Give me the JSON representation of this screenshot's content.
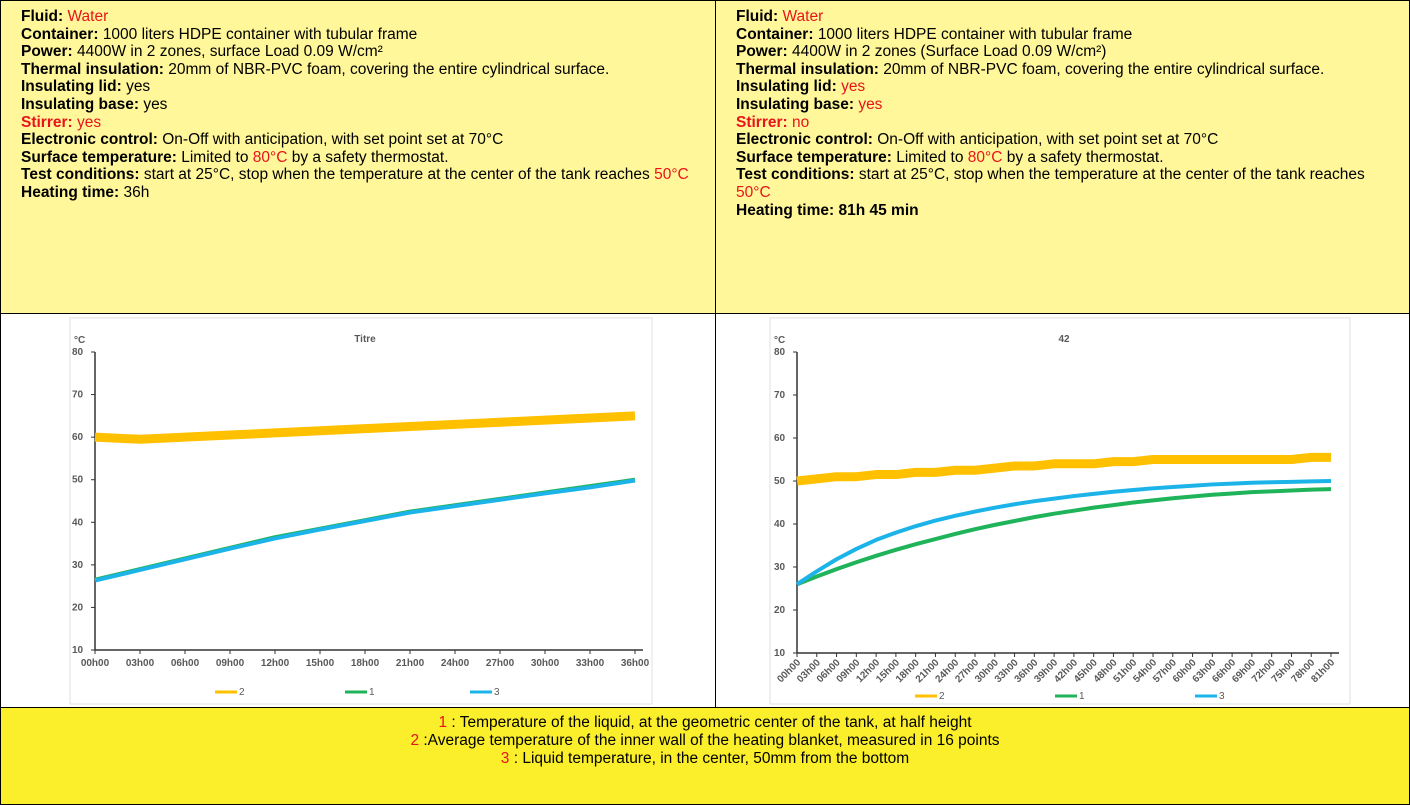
{
  "specs": [
    {
      "items": [
        {
          "label": "Fluid:",
          "value": [
            {
              "text": "Water",
              "red": true
            }
          ]
        },
        {
          "label": "Container:",
          "value": [
            {
              "text": "1000 liters HDPE container with tubular frame"
            }
          ]
        },
        {
          "label": "Power:",
          "value": [
            {
              "text": "4400W in 2 zones, surface Load 0.09 W/cm²"
            }
          ]
        },
        {
          "label": "Thermal insulation:",
          "value": [
            {
              "text": "20mm of NBR-PVC foam, covering the entire cylindrical surface."
            }
          ]
        },
        {
          "label": "Insulating lid:",
          "value": [
            {
              "text": "yes"
            }
          ]
        },
        {
          "label": "Insulating base:",
          "value": [
            {
              "text": "yes"
            }
          ]
        },
        {
          "label": "Stirrer:",
          "label_red": true,
          "value": [
            {
              "text": "yes",
              "red": true
            }
          ]
        },
        {
          "label": "Electronic control:",
          "value": [
            {
              "text": "On-Off with anticipation, with set point set at 70°C"
            }
          ]
        },
        {
          "label": "Surface temperature:",
          "value": [
            {
              "text": "Limited to"
            },
            {
              "text": "80°C",
              "red": true
            },
            {
              "text": "by a safety thermostat."
            }
          ]
        },
        {
          "label": "Test conditions:",
          "value": [
            {
              "text": "start at 25°C, stop when the temperature at the center of the tank reaches"
            },
            {
              "text": "50°C",
              "red": true
            }
          ]
        },
        {
          "label": "Heating time:",
          "value": [
            {
              "text": "36h"
            }
          ]
        }
      ]
    },
    {
      "items": [
        {
          "label": "Fluid:",
          "value": [
            {
              "text": "Water",
              "red": true
            }
          ]
        },
        {
          "label": "Container:",
          "value": [
            {
              "text": "1000 liters HDPE container with tubular frame"
            }
          ]
        },
        {
          "label": "Power:",
          "value": [
            {
              "text": "4400W in 2 zones (Surface Load 0.09 W/cm²)"
            }
          ]
        },
        {
          "label": "Thermal insulation:",
          "value": [
            {
              "text": "20mm of NBR-PVC foam, covering the entire cylindrical surface."
            }
          ]
        },
        {
          "label": "Insulating lid:",
          "value": [
            {
              "text": "yes",
              "red": true
            }
          ]
        },
        {
          "label": "Insulating base:",
          "value": [
            {
              "text": "yes",
              "red": true
            }
          ]
        },
        {
          "label": "Stirrer:",
          "label_red": true,
          "value": [
            {
              "text": "no",
              "red": true
            }
          ]
        },
        {
          "label": "Electronic control:",
          "value": [
            {
              "text": "On-Off with anticipation, with set point set at 70°C"
            }
          ]
        },
        {
          "label": "Surface temperature:",
          "value": [
            {
              "text": "Limited to"
            },
            {
              "text": "80°C",
              "red": true
            },
            {
              "text": "by a safety thermostat."
            }
          ]
        },
        {
          "label": "Test conditions:",
          "value": [
            {
              "text": "start at 25°C, stop when the temperature at the center of the tank reaches"
            },
            {
              "text": "50°C",
              "red": true
            }
          ]
        },
        {
          "label": "Heating time:",
          "value": [
            {
              "text": "81h 45 min",
              "bold": true
            }
          ]
        }
      ]
    }
  ],
  "chart_data": [
    {
      "type": "line",
      "title": "Titre",
      "y_unit": "°C",
      "categories": [
        "00h00",
        "03h00",
        "06h00",
        "09h00",
        "12h00",
        "15h00",
        "18h00",
        "21h00",
        "24h00",
        "27h00",
        "30h00",
        "33h00",
        "36h00"
      ],
      "rotate_x_labels": false,
      "legend": "bottom",
      "ylim": [
        10,
        80
      ],
      "yticks": [
        10,
        20,
        30,
        40,
        50,
        60,
        70,
        80
      ],
      "series": [
        {
          "name": "2",
          "color": "#ffc000",
          "values": [
            60,
            59.5,
            60,
            60.5,
            61,
            61.5,
            62,
            62.5,
            63,
            63.5,
            64,
            64.5,
            65
          ]
        },
        {
          "name": "1",
          "color": "#1fb35a",
          "values": [
            26.5,
            29,
            31.5,
            34,
            36.5,
            38.5,
            40.5,
            42.5,
            44,
            45.5,
            47,
            48.5,
            50
          ]
        },
        {
          "name": "3",
          "color": "#1cb4e8",
          "values": [
            26.3,
            28.8,
            31.3,
            33.8,
            36.2,
            38.3,
            40.3,
            42.3,
            43.8,
            45.3,
            46.8,
            48.2,
            49.8
          ]
        }
      ]
    },
    {
      "type": "line",
      "title": "42",
      "y_unit": "°C",
      "categories": [
        "00h00",
        "03h00",
        "06h00",
        "09h00",
        "12h00",
        "15h00",
        "18h00",
        "21h00",
        "24h00",
        "27h00",
        "30h00",
        "33h00",
        "36h00",
        "39h00",
        "42h00",
        "45h00",
        "48h00",
        "51h00",
        "54h00",
        "57h00",
        "60h00",
        "63h00",
        "66h00",
        "69h00",
        "72h00",
        "75h00",
        "78h00",
        "81h00"
      ],
      "rotate_x_labels": true,
      "legend": "bottom",
      "ylim": [
        10,
        80
      ],
      "yticks": [
        10,
        20,
        30,
        40,
        50,
        60,
        70,
        80
      ],
      "series": [
        {
          "name": "2",
          "color": "#ffc000",
          "values": [
            50,
            50.5,
            51,
            51,
            51.5,
            51.5,
            52,
            52,
            52.5,
            52.5,
            53,
            53.5,
            53.5,
            54,
            54,
            54,
            54.5,
            54.5,
            55,
            55,
            55,
            55,
            55,
            55,
            55,
            55,
            55.5,
            55.5
          ]
        },
        {
          "name": "1",
          "color": "#1fb35a",
          "values": [
            26,
            27.8,
            29.5,
            31.1,
            32.6,
            34,
            35.3,
            36.5,
            37.7,
            38.8,
            39.8,
            40.7,
            41.6,
            42.4,
            43.1,
            43.8,
            44.4,
            45,
            45.5,
            46,
            46.4,
            46.8,
            47.1,
            47.4,
            47.6,
            47.8,
            48,
            48.1
          ]
        },
        {
          "name": "3",
          "color": "#1cb4e8",
          "values": [
            26,
            29,
            31.8,
            34.2,
            36.3,
            38,
            39.5,
            40.8,
            41.9,
            42.9,
            43.8,
            44.6,
            45.3,
            45.9,
            46.5,
            47,
            47.5,
            47.9,
            48.3,
            48.6,
            48.9,
            49.2,
            49.4,
            49.6,
            49.7,
            49.8,
            49.9,
            50
          ]
        }
      ]
    }
  ],
  "legend": [
    {
      "number": "1",
      "text": ": Temperature of the liquid, at the geometric center of the tank, at half height"
    },
    {
      "number": "2",
      "text": ":Average temperature of the inner wall of the heating blanket, measured in 16 points"
    },
    {
      "number": "3",
      "text": ":  Liquid temperature, in the center, 50mm from the bottom"
    }
  ]
}
